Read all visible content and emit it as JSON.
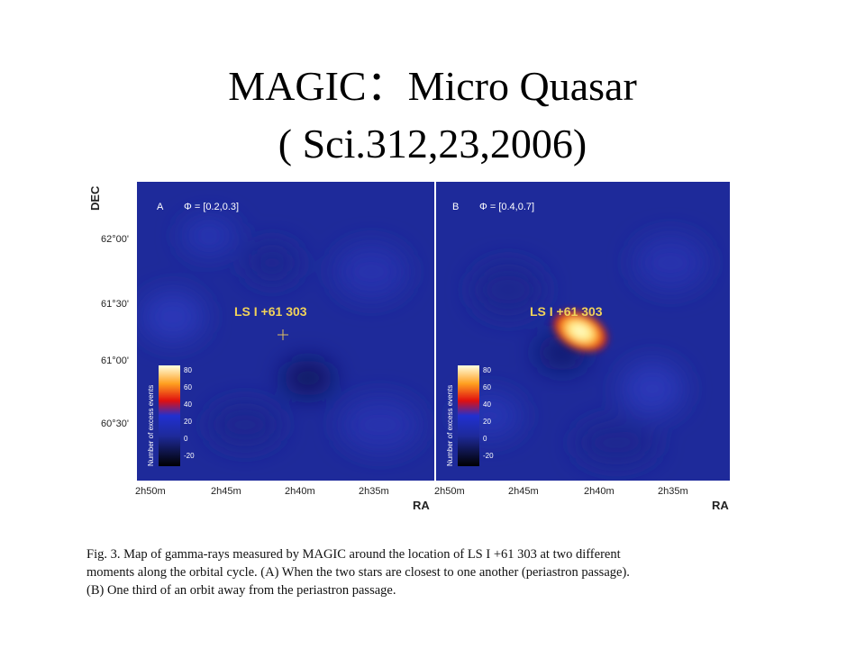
{
  "slide": {
    "title_line1": "MAGIC：Micro Quasar",
    "title_line2": "( Sci.312,23,2006)"
  },
  "figure": {
    "y_axis_label": "DEC",
    "x_axis_label": "RA",
    "dec_ticks": [
      "62°00'",
      "61°30'",
      "61°00'",
      "60°30'"
    ],
    "ra_ticks": [
      "2h50m",
      "2h45m",
      "2h40m",
      "2h35m"
    ],
    "panel_a": {
      "letter": "A",
      "phase": "Φ = [0.2,0.3]",
      "source_label": "LS I +61 303"
    },
    "panel_b": {
      "letter": "B",
      "phase": "Φ = [0.4,0.7]",
      "source_label": "LS I +61 303"
    },
    "colorbar": {
      "label": "Number of excess events",
      "ticks": [
        "80",
        "60",
        "40",
        "20",
        "0",
        "-20"
      ]
    },
    "colors": {
      "map_background": "#1e2a9a",
      "hotspot": "#fff2a0",
      "source_label": "#f0d25a"
    }
  },
  "caption": {
    "line1": "Fig. 3. Map of gamma-rays measured by MAGIC around the location of LS I +61 303 at two different",
    "line2": "moments along the orbital cycle. (A) When the two stars are closest to one another (periastron passage).",
    "line3": "(B) One third of an orbit away from the periastron passage."
  }
}
